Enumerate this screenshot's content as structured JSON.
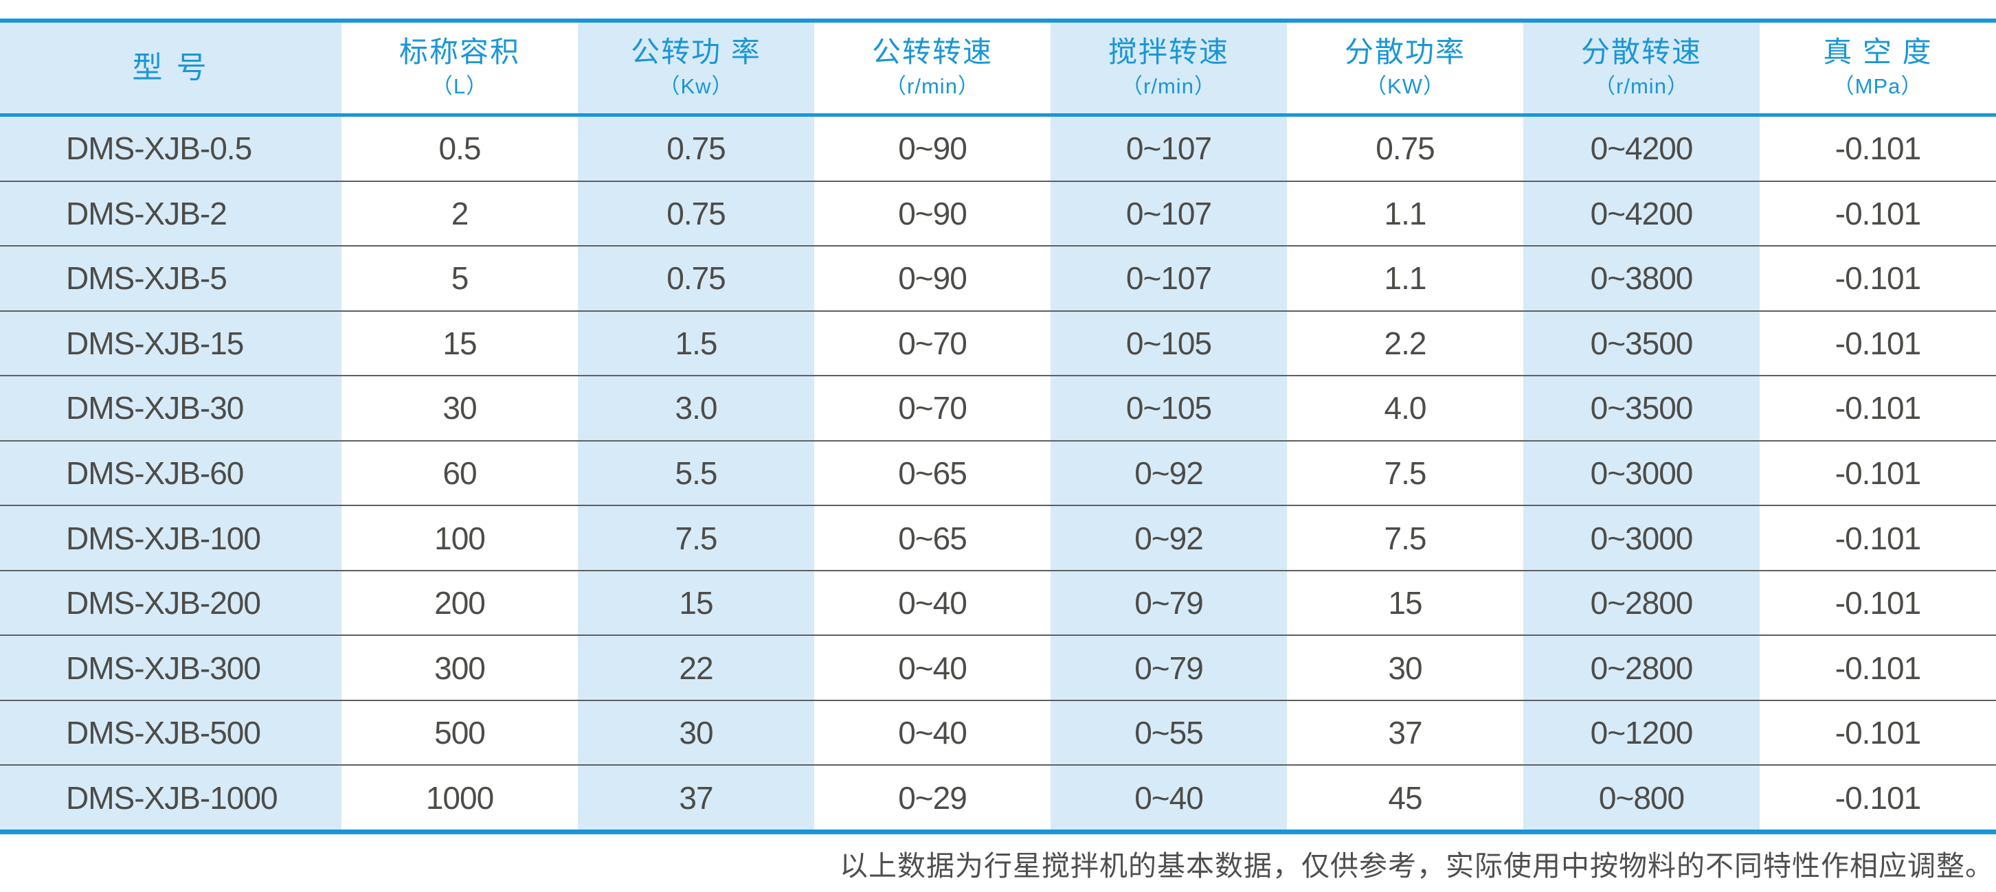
{
  "colors": {
    "accent_blue": "#1a96d6",
    "stripe_blue": "#d7eaf8",
    "body_text": "#4c4c48",
    "row_divider": "#5f5f5f",
    "footer_text": "#4f4f4f"
  },
  "table": {
    "columns": [
      {
        "key": "model",
        "label": "型  号",
        "unit": "",
        "striped": true
      },
      {
        "key": "capacity",
        "label": "标称容积",
        "unit": "（L）",
        "striped": false
      },
      {
        "key": "rev_power",
        "label": "公转功 率",
        "unit": "（Kw）",
        "striped": true
      },
      {
        "key": "rev_speed",
        "label": "公转转速",
        "unit": "（r/min）",
        "striped": false
      },
      {
        "key": "stir_speed",
        "label": "搅拌转速",
        "unit": "（r/min）",
        "striped": true
      },
      {
        "key": "disp_power",
        "label": "分散功率",
        "unit": "（KW）",
        "striped": false
      },
      {
        "key": "disp_speed",
        "label": "分散转速",
        "unit": "（r/min）",
        "striped": true
      },
      {
        "key": "vacuum",
        "label": "真 空 度",
        "unit": "（MPa）",
        "striped": false
      }
    ],
    "rows": [
      [
        "DMS-XJB-0.5",
        "0.5",
        "0.75",
        "0~90",
        "0~107",
        "0.75",
        "0~4200",
        "-0.101"
      ],
      [
        "DMS-XJB-2",
        "2",
        "0.75",
        "0~90",
        "0~107",
        "1.1",
        "0~4200",
        "-0.101"
      ],
      [
        "DMS-XJB-5",
        "5",
        "0.75",
        "0~90",
        "0~107",
        "1.1",
        "0~3800",
        "-0.101"
      ],
      [
        "DMS-XJB-15",
        "15",
        "1.5",
        "0~70",
        "0~105",
        "2.2",
        "0~3500",
        "-0.101"
      ],
      [
        "DMS-XJB-30",
        "30",
        "3.0",
        "0~70",
        "0~105",
        "4.0",
        "0~3500",
        "-0.101"
      ],
      [
        "DMS-XJB-60",
        "60",
        "5.5",
        "0~65",
        "0~92",
        "7.5",
        "0~3000",
        "-0.101"
      ],
      [
        "DMS-XJB-100",
        "100",
        "7.5",
        "0~65",
        "0~92",
        "7.5",
        "0~3000",
        "-0.101"
      ],
      [
        "DMS-XJB-200",
        "200",
        "15",
        "0~40",
        "0~79",
        "15",
        "0~2800",
        "-0.101"
      ],
      [
        "DMS-XJB-300",
        "300",
        "22",
        "0~40",
        "0~79",
        "30",
        "0~2800",
        "-0.101"
      ],
      [
        "DMS-XJB-500",
        "500",
        "30",
        "0~40",
        "0~55",
        "37",
        "0~1200",
        "-0.101"
      ],
      [
        "DMS-XJB-1000",
        "1000",
        "37",
        "0~29",
        "0~40",
        "45",
        "0~800",
        "-0.101"
      ]
    ]
  },
  "footer": {
    "note": "以上数据为行星搅拌机的基本数据，仅供参考，实际使用中按物料的不同特性作相应调整。"
  }
}
